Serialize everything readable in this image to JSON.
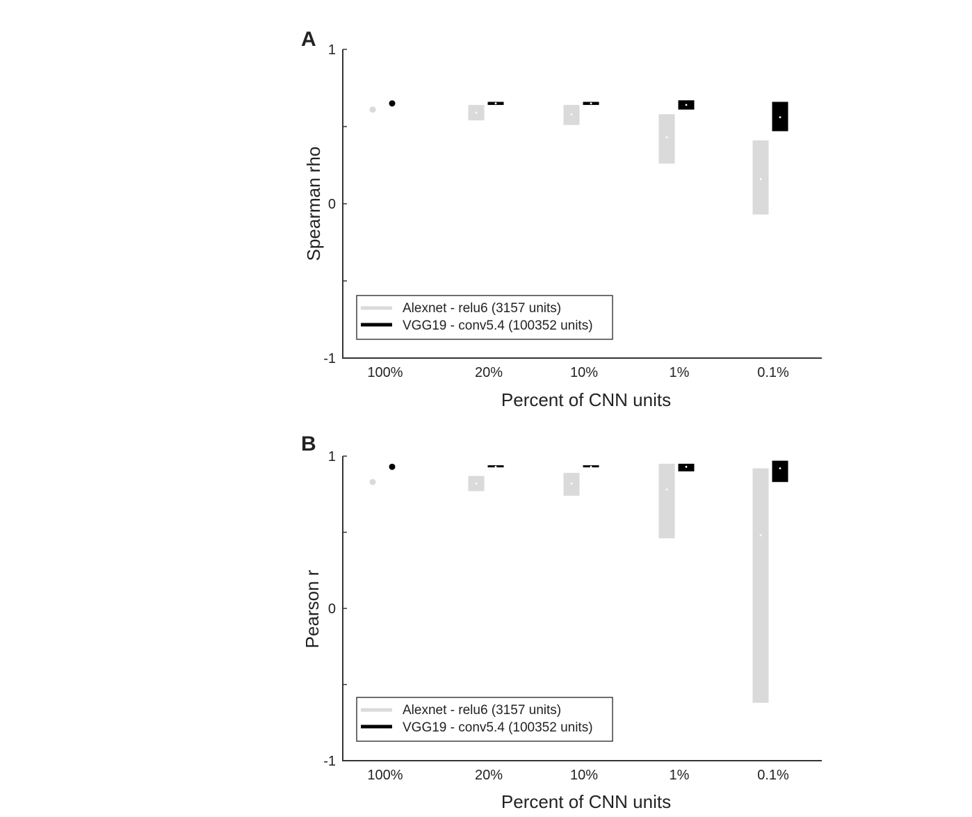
{
  "chart_data": [
    {
      "panel_letter": "A",
      "type": "range-bar",
      "ylabel": "Spearman rho",
      "xlabel": "Percent of CNN units",
      "categories": [
        "100%",
        "20%",
        "10%",
        "1%",
        "0.1%"
      ],
      "ylim": [
        -1,
        1
      ],
      "yticks": [
        -1,
        -0.5,
        0,
        0.5,
        1
      ],
      "ytick_labels": [
        "-1",
        "",
        "0",
        "",
        "1"
      ],
      "legend_position": "bottom-left",
      "series": [
        {
          "name": "Alexnet - relu6 (3157 units)",
          "color": "#dadada",
          "median_color": "#ffffff",
          "median": [
            0.61,
            0.59,
            0.58,
            0.43,
            0.16
          ],
          "low": [
            0.61,
            0.54,
            0.51,
            0.26,
            -0.07
          ],
          "high": [
            0.61,
            0.64,
            0.64,
            0.58,
            0.41
          ]
        },
        {
          "name": "VGG19 - conv5.4 (100352 units)",
          "color": "#000000",
          "median_color": "#ffffff",
          "median": [
            0.65,
            0.65,
            0.65,
            0.64,
            0.56
          ],
          "low": [
            0.65,
            0.64,
            0.64,
            0.61,
            0.47
          ],
          "high": [
            0.65,
            0.66,
            0.66,
            0.67,
            0.66
          ]
        }
      ]
    },
    {
      "panel_letter": "B",
      "type": "range-bar",
      "ylabel": "Pearson r",
      "xlabel": "Percent of CNN units",
      "categories": [
        "100%",
        "20%",
        "10%",
        "1%",
        "0.1%"
      ],
      "ylim": [
        -1,
        1
      ],
      "yticks": [
        -1,
        -0.5,
        0,
        0.5,
        1
      ],
      "ytick_labels": [
        "-1",
        "",
        "0",
        "",
        "1"
      ],
      "legend_position": "bottom-left",
      "series": [
        {
          "name": "Alexnet - relu6 (3157 units)",
          "color": "#dadada",
          "median_color": "#ffffff",
          "median": [
            0.83,
            0.82,
            0.82,
            0.78,
            0.48
          ],
          "low": [
            0.83,
            0.77,
            0.74,
            0.46,
            -0.62
          ],
          "high": [
            0.83,
            0.87,
            0.89,
            0.95,
            0.92
          ]
        },
        {
          "name": "VGG19 - conv5.4 (100352 units)",
          "color": "#000000",
          "median_color": "#ffffff",
          "median": [
            0.93,
            0.93,
            0.93,
            0.93,
            0.92
          ],
          "low": [
            0.93,
            0.93,
            0.93,
            0.9,
            0.83
          ],
          "high": [
            0.93,
            0.94,
            0.94,
            0.95,
            0.97
          ]
        }
      ]
    }
  ]
}
